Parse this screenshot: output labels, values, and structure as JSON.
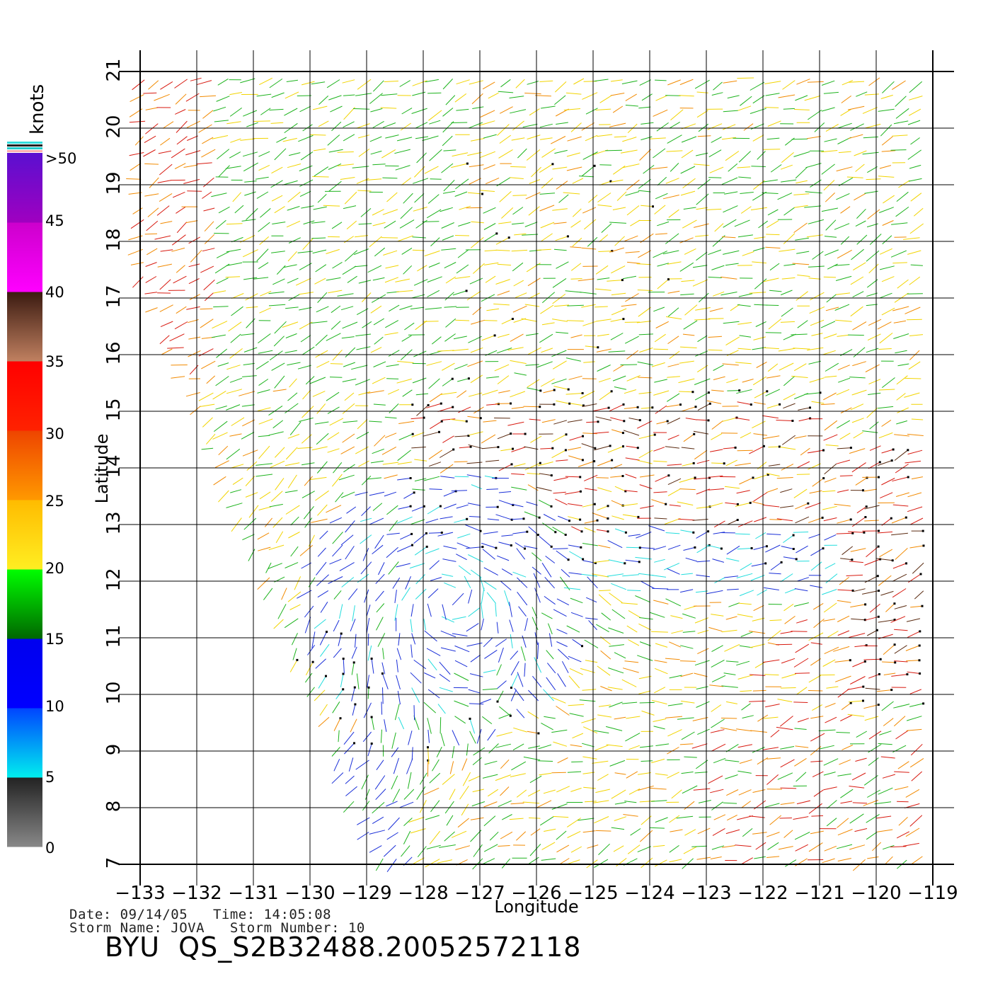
{
  "map": {
    "lon_ticks": [
      "−133",
      "−132",
      "−131",
      "−130",
      "−129",
      "−128",
      "−127",
      "−126",
      "−125",
      "−124",
      "−123",
      "−122",
      "−121",
      "−120",
      "−119"
    ],
    "lat_ticks": [
      "7",
      "8",
      "9",
      "10",
      "11",
      "12",
      "13",
      "14",
      "15",
      "16",
      "17",
      "18",
      "19",
      "20",
      "21"
    ],
    "lon_range": [
      -133,
      -119
    ],
    "lat_range": [
      7,
      21
    ],
    "xlabel": "Longitude",
    "ylabel": "Latitude",
    "storm_center_approx": {
      "lon": -127.5,
      "lat": 11.6
    }
  },
  "colorbar": {
    "title": "knots",
    "labels": [
      "0",
      "5",
      "10",
      "15",
      "20",
      "25",
      "30",
      "35",
      "40",
      "45",
      ">50"
    ]
  },
  "colors": {
    "gray": "#555555",
    "cyan": "#22dddd",
    "blue": "#1a2fd8",
    "green": "#1db31d",
    "yellow": "#f2d400",
    "orange": "#f28a00",
    "red": "#d81a10",
    "brown": "#5a2a10",
    "magenta": "#c000c0",
    "purple": "#6a10c0"
  },
  "footer": {
    "date_line": "Date: 09/14/05   Time: 14:05:08",
    "storm_line": "Storm Name: JOVA   Storm Number: 10",
    "title": "BYU  QS_S2B32488.20052572118"
  }
}
